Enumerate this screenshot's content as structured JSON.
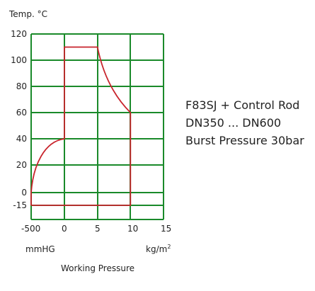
{
  "chart_data": {
    "type": "line",
    "ylabel": "Temp. °C",
    "xlabel": "Working Pressure",
    "x_unit_left": "mmHG",
    "x_unit_right": "kg/m",
    "x_unit_right_sup": "2",
    "x_ticks": [
      "-500",
      "0",
      "5",
      "10",
      "15"
    ],
    "y_ticks": [
      "120",
      "100",
      "80",
      "60",
      "40",
      "20",
      "0",
      "-15"
    ],
    "y_tick_values": [
      120,
      100,
      80,
      60,
      40,
      20,
      0,
      -15
    ],
    "ylim": [
      -15,
      120
    ],
    "grid": true,
    "colors": {
      "grid": "#1a8a2a",
      "series": "#c8242c"
    },
    "series": [
      {
        "x": [
          -500,
          0,
          0,
          5,
          7,
          8.5,
          10,
          10,
          -500,
          -500
        ],
        "y": [
          -15,
          -15,
          110,
          110,
          85,
          70,
          60,
          -15,
          -15,
          0
        ]
      }
    ],
    "curve_lower_left": {
      "from": [
        -500,
        0
      ],
      "to": [
        0,
        40
      ]
    }
  },
  "caption": {
    "lines": [
      "F83SJ + Control Rod",
      "DN350 ... DN600",
      "Burst Pressure 30bar"
    ]
  }
}
